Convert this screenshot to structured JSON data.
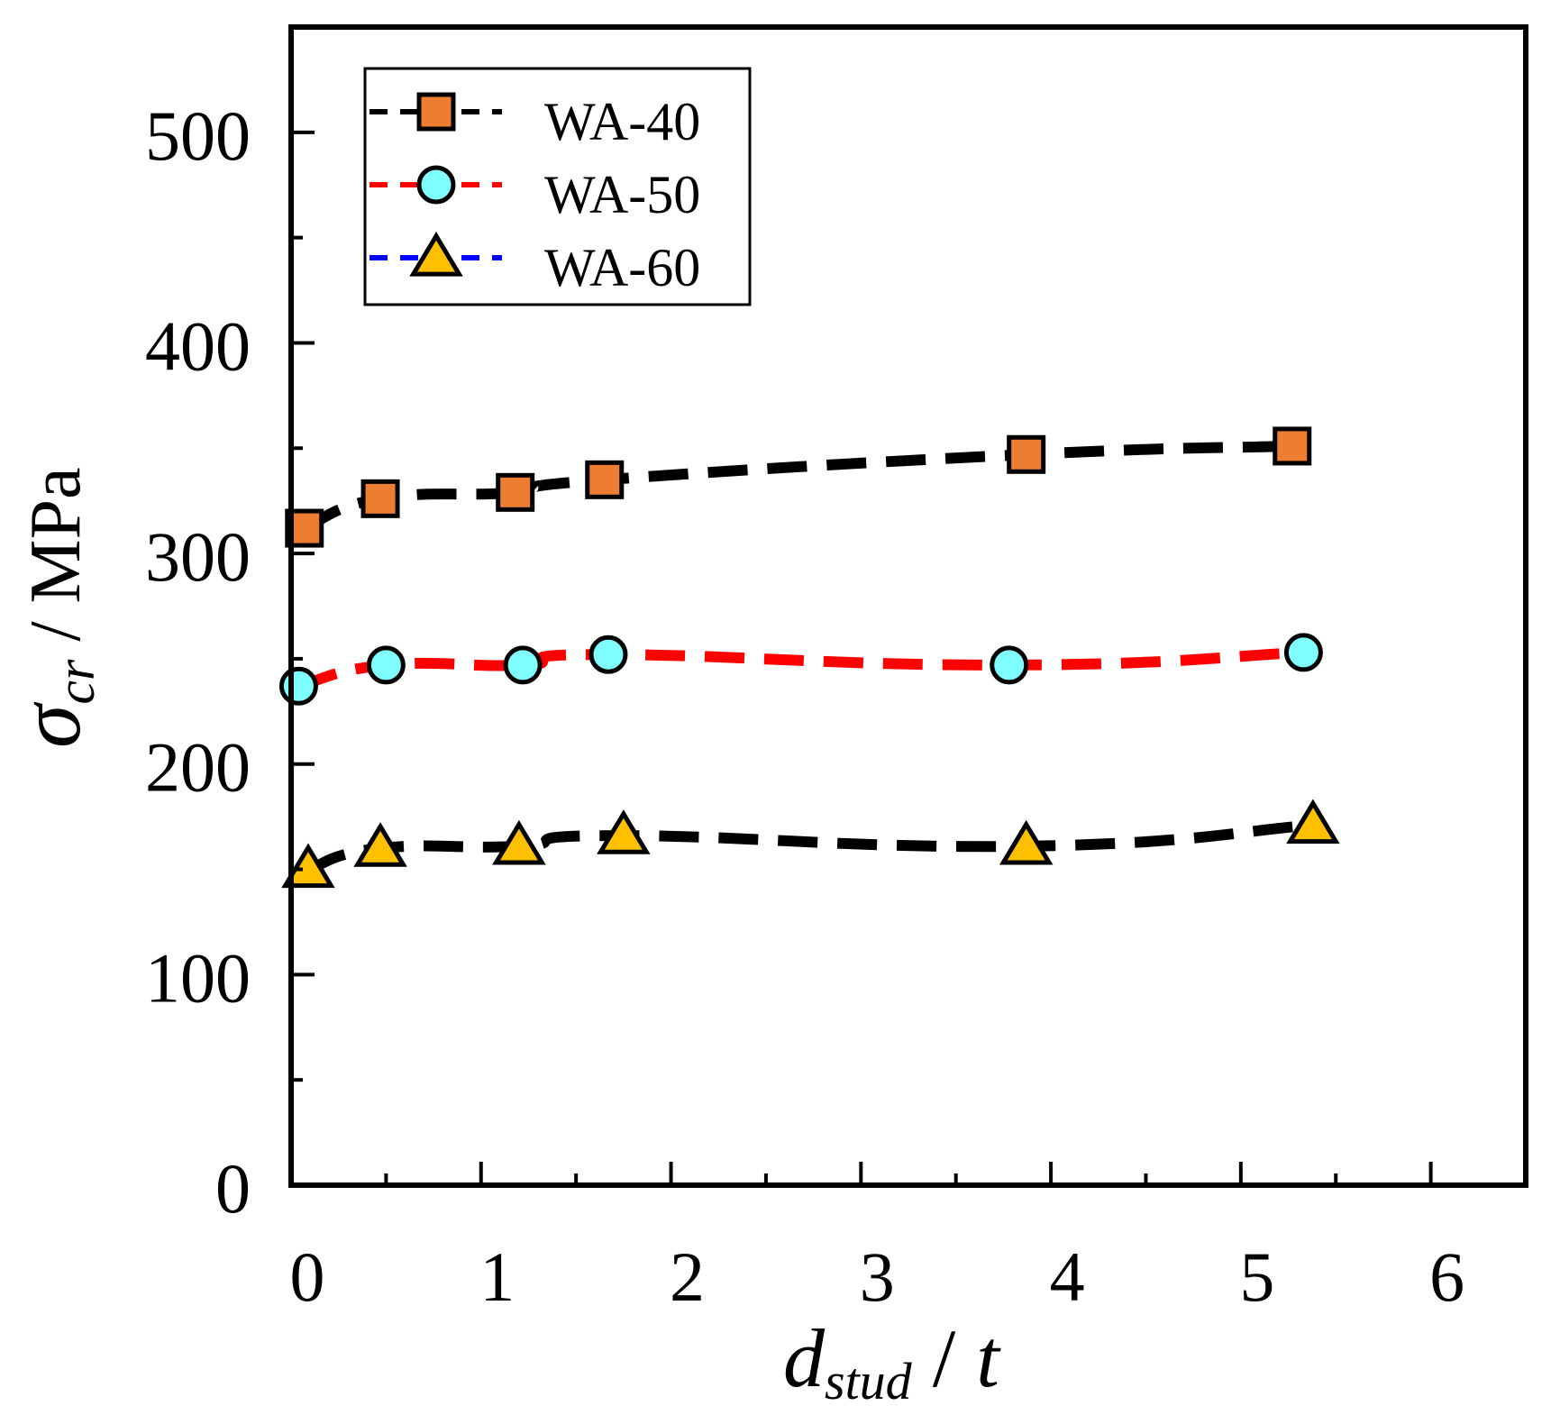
{
  "chart_data": {
    "type": "line",
    "title": "",
    "xlabel": {
      "main": "d",
      "sub": "stud",
      "tail": " / ",
      "var": "t"
    },
    "ylabel": {
      "main": "σ",
      "sub": "cr",
      "tail": " / MPa"
    },
    "xlim": [
      0,
      6.5
    ],
    "ylim": [
      0,
      550
    ],
    "xticks": [
      0,
      1,
      2,
      3,
      4,
      5,
      6
    ],
    "yticks": [
      0,
      100,
      200,
      300,
      400,
      500
    ],
    "legend_position": "top-left",
    "series": [
      {
        "name": "WA-40",
        "marker": "square",
        "marker_color": "#ED7D31",
        "line_color": "#000000",
        "x": [
          0.07,
          0.47,
          1.18,
          1.65,
          3.87,
          5.27
        ],
        "y": [
          312,
          326,
          329,
          335,
          347,
          351
        ]
      },
      {
        "name": "WA-50",
        "marker": "circle",
        "marker_color": "#7FFFFF",
        "line_color": "#FF0000",
        "x": [
          0.04,
          0.5,
          1.22,
          1.67,
          3.78,
          5.33
        ],
        "y": [
          237,
          247,
          247,
          252,
          247,
          253
        ]
      },
      {
        "name": "WA-60",
        "marker": "triangle",
        "marker_color": "#FFC000",
        "line_color": "#000000",
        "legend_line_color": "#0000FF",
        "x": [
          0.09,
          0.47,
          1.2,
          1.75,
          3.87,
          5.38
        ],
        "y": [
          150,
          160,
          161,
          166,
          161,
          171
        ]
      }
    ]
  }
}
